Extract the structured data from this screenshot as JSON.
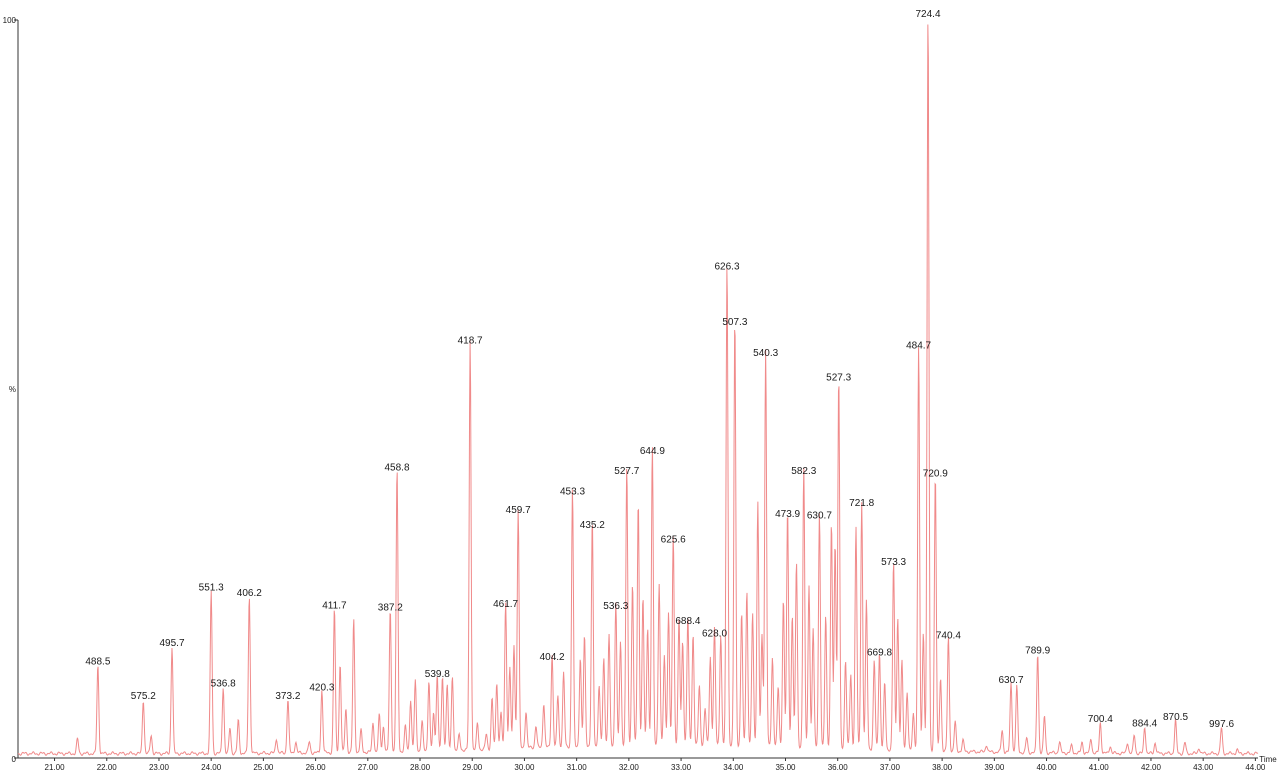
{
  "chart_data": {
    "type": "line",
    "xlabel": "Time",
    "ylabel": "%",
    "xlim": [
      20.3,
      44.05
    ],
    "ylim": [
      0,
      100
    ],
    "x_ticks": [
      "21.00",
      "22.00",
      "23.00",
      "24.00",
      "25.00",
      "26.00",
      "27.00",
      "28.00",
      "29.00",
      "30.00",
      "31.00",
      "32.00",
      "33.00",
      "34.00",
      "35.00",
      "36.00",
      "37.00",
      "38.00",
      "39.00",
      "40.00",
      "41.00",
      "42.00",
      "43.00",
      "44.00"
    ],
    "y_ticks": [
      "100",
      "%",
      "0"
    ],
    "series_color": "#f08a8a",
    "labeled_peaks": [
      {
        "x": 21.83,
        "y": 12.0,
        "label": "488.5"
      },
      {
        "x": 22.7,
        "y": 7.3,
        "label": "575.2"
      },
      {
        "x": 23.25,
        "y": 14.5,
        "label": "495.7"
      },
      {
        "x": 24.0,
        "y": 22.0,
        "label": "551.3"
      },
      {
        "x": 24.23,
        "y": 9.0,
        "label": "536.8"
      },
      {
        "x": 24.73,
        "y": 21.3,
        "label": "406.2"
      },
      {
        "x": 25.47,
        "y": 7.3,
        "label": "373.2"
      },
      {
        "x": 26.12,
        "y": 8.5,
        "label": "420.3"
      },
      {
        "x": 26.36,
        "y": 19.6,
        "label": "411.7"
      },
      {
        "x": 27.43,
        "y": 19.3,
        "label": "387.2"
      },
      {
        "x": 27.56,
        "y": 38.3,
        "label": "458.8"
      },
      {
        "x": 28.33,
        "y": 10.3,
        "label": "539.8"
      },
      {
        "x": 28.96,
        "y": 55.5,
        "label": "418.7"
      },
      {
        "x": 29.64,
        "y": 19.8,
        "label": "461.7"
      },
      {
        "x": 29.88,
        "y": 32.5,
        "label": "459.7"
      },
      {
        "x": 30.53,
        "y": 12.6,
        "label": "404.2"
      },
      {
        "x": 30.92,
        "y": 35.0,
        "label": "453.3"
      },
      {
        "x": 31.3,
        "y": 30.5,
        "label": "435.2"
      },
      {
        "x": 31.75,
        "y": 19.5,
        "label": "536.3"
      },
      {
        "x": 31.96,
        "y": 37.8,
        "label": "527.7"
      },
      {
        "x": 32.45,
        "y": 40.5,
        "label": "644.9"
      },
      {
        "x": 32.85,
        "y": 28.5,
        "label": "625.6"
      },
      {
        "x": 33.13,
        "y": 17.5,
        "label": "688.4"
      },
      {
        "x": 33.64,
        "y": 15.8,
        "label": "628.0"
      },
      {
        "x": 33.88,
        "y": 65.5,
        "label": "626.3"
      },
      {
        "x": 34.03,
        "y": 58.0,
        "label": "507.3"
      },
      {
        "x": 34.62,
        "y": 53.8,
        "label": "540.3"
      },
      {
        "x": 35.04,
        "y": 32.0,
        "label": "473.9"
      },
      {
        "x": 35.35,
        "y": 37.8,
        "label": "582.3"
      },
      {
        "x": 35.65,
        "y": 31.8,
        "label": "630.7"
      },
      {
        "x": 36.02,
        "y": 50.5,
        "label": "527.3"
      },
      {
        "x": 36.46,
        "y": 33.5,
        "label": "721.8"
      },
      {
        "x": 36.8,
        "y": 13.2,
        "label": "669.8"
      },
      {
        "x": 37.07,
        "y": 25.5,
        "label": "573.3"
      },
      {
        "x": 37.55,
        "y": 54.8,
        "label": "484.7"
      },
      {
        "x": 37.73,
        "y": 100.0,
        "label": "724.4"
      },
      {
        "x": 37.87,
        "y": 37.5,
        "label": "720.9"
      },
      {
        "x": 38.12,
        "y": 15.5,
        "label": "740.4"
      },
      {
        "x": 39.32,
        "y": 9.5,
        "label": "630.7"
      },
      {
        "x": 39.83,
        "y": 13.5,
        "label": "789.9"
      },
      {
        "x": 41.03,
        "y": 4.2,
        "label": "700.4"
      },
      {
        "x": 41.88,
        "y": 3.6,
        "label": "884.4"
      },
      {
        "x": 42.47,
        "y": 4.5,
        "label": "870.5"
      },
      {
        "x": 43.35,
        "y": 3.5,
        "label": "997.6"
      }
    ],
    "minor_peaks": [
      {
        "x": 21.44,
        "y": 2.0
      },
      {
        "x": 22.85,
        "y": 2.5
      },
      {
        "x": 24.36,
        "y": 3.5
      },
      {
        "x": 24.52,
        "y": 4.5
      },
      {
        "x": 25.25,
        "y": 2.0
      },
      {
        "x": 25.62,
        "y": 1.5
      },
      {
        "x": 25.88,
        "y": 1.5
      },
      {
        "x": 26.47,
        "y": 12.0
      },
      {
        "x": 26.58,
        "y": 6.0
      },
      {
        "x": 26.73,
        "y": 18.0
      },
      {
        "x": 26.87,
        "y": 3.0
      },
      {
        "x": 27.1,
        "y": 4.0
      },
      {
        "x": 27.22,
        "y": 5.0
      },
      {
        "x": 27.3,
        "y": 3.5
      },
      {
        "x": 27.72,
        "y": 3.5
      },
      {
        "x": 27.82,
        "y": 7.0
      },
      {
        "x": 27.91,
        "y": 9.5
      },
      {
        "x": 28.04,
        "y": 4.0
      },
      {
        "x": 28.17,
        "y": 9.5
      },
      {
        "x": 28.26,
        "y": 5.0
      },
      {
        "x": 28.43,
        "y": 10.0
      },
      {
        "x": 28.52,
        "y": 9.0
      },
      {
        "x": 28.62,
        "y": 10.0
      },
      {
        "x": 28.75,
        "y": 2.0
      },
      {
        "x": 29.1,
        "y": 3.5
      },
      {
        "x": 29.27,
        "y": 2.0
      },
      {
        "x": 29.38,
        "y": 7.0
      },
      {
        "x": 29.47,
        "y": 9.0
      },
      {
        "x": 29.55,
        "y": 5.0
      },
      {
        "x": 29.72,
        "y": 11.0
      },
      {
        "x": 29.8,
        "y": 14.0
      },
      {
        "x": 30.03,
        "y": 5.0
      },
      {
        "x": 30.22,
        "y": 3.0
      },
      {
        "x": 30.37,
        "y": 6.0
      },
      {
        "x": 30.64,
        "y": 7.0
      },
      {
        "x": 30.75,
        "y": 10.0
      },
      {
        "x": 31.07,
        "y": 12.0
      },
      {
        "x": 31.15,
        "y": 15.0
      },
      {
        "x": 31.43,
        "y": 8.0
      },
      {
        "x": 31.52,
        "y": 12.0
      },
      {
        "x": 31.62,
        "y": 15.0
      },
      {
        "x": 31.84,
        "y": 14.0
      },
      {
        "x": 32.07,
        "y": 22.0
      },
      {
        "x": 32.18,
        "y": 33.0
      },
      {
        "x": 32.27,
        "y": 20.0
      },
      {
        "x": 32.36,
        "y": 16.0
      },
      {
        "x": 32.58,
        "y": 22.0
      },
      {
        "x": 32.68,
        "y": 12.0
      },
      {
        "x": 32.76,
        "y": 18.0
      },
      {
        "x": 32.96,
        "y": 17.0
      },
      {
        "x": 33.03,
        "y": 14.0
      },
      {
        "x": 33.23,
        "y": 15.0
      },
      {
        "x": 33.35,
        "y": 8.0
      },
      {
        "x": 33.46,
        "y": 5.0
      },
      {
        "x": 33.56,
        "y": 12.0
      },
      {
        "x": 33.76,
        "y": 15.0
      },
      {
        "x": 34.16,
        "y": 18.0
      },
      {
        "x": 34.26,
        "y": 21.0
      },
      {
        "x": 34.37,
        "y": 18.0
      },
      {
        "x": 34.47,
        "y": 33.0
      },
      {
        "x": 34.55,
        "y": 15.0
      },
      {
        "x": 34.75,
        "y": 12.0
      },
      {
        "x": 34.86,
        "y": 8.0
      },
      {
        "x": 34.96,
        "y": 20.0
      },
      {
        "x": 35.13,
        "y": 18.0
      },
      {
        "x": 35.21,
        "y": 25.0
      },
      {
        "x": 35.45,
        "y": 22.0
      },
      {
        "x": 35.53,
        "y": 16.0
      },
      {
        "x": 35.77,
        "y": 18.0
      },
      {
        "x": 35.88,
        "y": 30.5
      },
      {
        "x": 35.95,
        "y": 28.0
      },
      {
        "x": 36.15,
        "y": 12.0
      },
      {
        "x": 36.25,
        "y": 10.0
      },
      {
        "x": 36.35,
        "y": 30.0
      },
      {
        "x": 36.55,
        "y": 20.0
      },
      {
        "x": 36.7,
        "y": 12.0
      },
      {
        "x": 36.9,
        "y": 9.0
      },
      {
        "x": 37.15,
        "y": 18.0
      },
      {
        "x": 37.23,
        "y": 12.0
      },
      {
        "x": 37.33,
        "y": 8.0
      },
      {
        "x": 37.45,
        "y": 5.0
      },
      {
        "x": 37.64,
        "y": 16.0
      },
      {
        "x": 37.97,
        "y": 10.0
      },
      {
        "x": 38.25,
        "y": 4.0
      },
      {
        "x": 38.4,
        "y": 1.5
      },
      {
        "x": 38.85,
        "y": 1.0
      },
      {
        "x": 39.15,
        "y": 3.0
      },
      {
        "x": 39.43,
        "y": 9.0
      },
      {
        "x": 39.62,
        "y": 2.0
      },
      {
        "x": 39.96,
        "y": 5.0
      },
      {
        "x": 40.25,
        "y": 1.5
      },
      {
        "x": 40.48,
        "y": 1.0
      },
      {
        "x": 40.68,
        "y": 1.5
      },
      {
        "x": 40.85,
        "y": 2.0
      },
      {
        "x": 41.22,
        "y": 1.0
      },
      {
        "x": 41.55,
        "y": 1.5
      },
      {
        "x": 41.68,
        "y": 2.5
      },
      {
        "x": 42.08,
        "y": 1.5
      },
      {
        "x": 42.65,
        "y": 1.5
      },
      {
        "x": 42.92,
        "y": 0.8
      },
      {
        "x": 43.65,
        "y": 0.5
      }
    ]
  }
}
